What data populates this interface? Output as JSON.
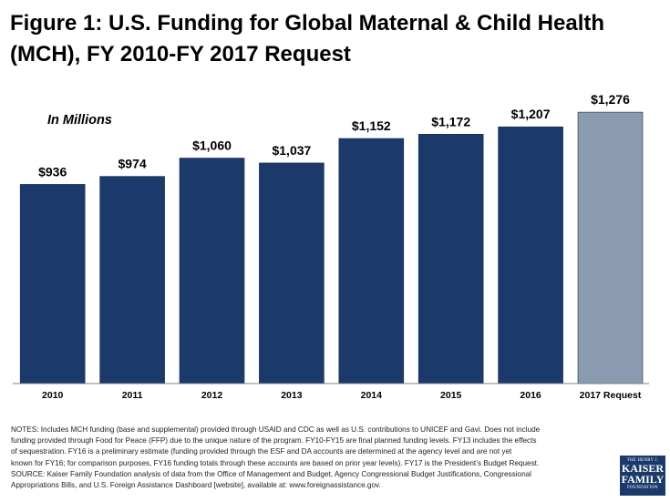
{
  "title_lines": [
    "Figure 1: U.S. Funding for Global Maternal & Child Health",
    "(MCH), FY 2010-FY 2017 Request"
  ],
  "chart_data": {
    "type": "bar",
    "title": "Figure 1: U.S. Funding for Global Maternal & Child Health (MCH), FY 2010-FY 2017 Request",
    "annotation": "In Millions",
    "categories": [
      "2010",
      "2011",
      "2012",
      "2013",
      "2014",
      "2015",
      "2016",
      "2017 Request"
    ],
    "values": [
      936,
      974,
      1060,
      1037,
      1152,
      1172,
      1207,
      1276
    ],
    "value_labels": [
      "$936",
      "$974",
      "$1,060",
      "$1,037",
      "$1,152",
      "$1,172",
      "$1,207",
      "$1,276"
    ],
    "bar_colors": [
      "#1b3a6b",
      "#1b3a6b",
      "#1b3a6b",
      "#1b3a6b",
      "#1b3a6b",
      "#1b3a6b",
      "#1b3a6b",
      "#8a9bb0"
    ],
    "xlabel": "",
    "ylabel": "",
    "ylim": [
      0,
      1400
    ],
    "grid": false
  },
  "notes": [
    "NOTES: Includes MCH funding (base and supplemental) provided through USAID and CDC as well as U.S. contributions to UNICEF and Gavi. Does not include",
    "funding provided through Food for Peace (FFP) due to the unique nature of the program. FY10-FY15 are final planned funding levels. FY13 includes the effects",
    "of sequestration. FY16 is a preliminary estimate (funding provided through the ESF and DA accounts are determined at the agency level and are not yet",
    "known for FY16; for comparison purposes, FY16 funding totals through these accounts are based on prior year levels). FY17 is the President’s Budget Request.",
    "SOURCE: Kaiser Family Foundation analysis of data from the Office of Management and Budget, Agency Congressional Budget Justifications, Congressional",
    "Appropriations Bills, and U.S. Foreign Assistance Dashboard [website], available at: www.foreignassistance.gov."
  ],
  "logo": {
    "line1": "THE HENRY J.",
    "line2": "KAISER",
    "line3": "FAMILY",
    "line4": "FOUNDATION"
  }
}
